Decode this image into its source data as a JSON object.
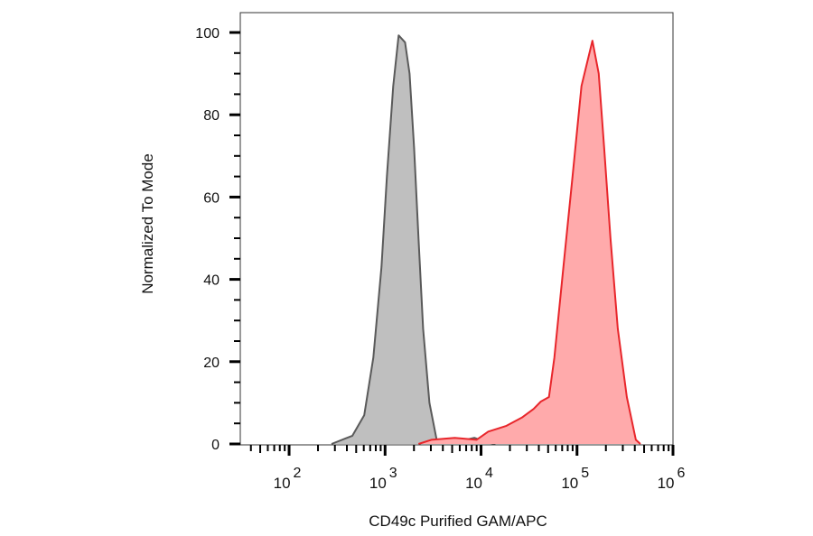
{
  "chart_data": {
    "type": "area",
    "title": "",
    "xlabel": "CD49c Purified GAM/APC",
    "ylabel": "Normalized To Mode",
    "xscale": "log",
    "xlim": [
      31,
      1000000
    ],
    "ylim": [
      0,
      104.8
    ],
    "x_tick_labels": [
      {
        "base": "10",
        "exp": "2",
        "value": 100
      },
      {
        "base": "10",
        "exp": "3",
        "value": 1000
      },
      {
        "base": "10",
        "exp": "4",
        "value": 10000
      },
      {
        "base": "10",
        "exp": "5",
        "value": 100000
      },
      {
        "base": "10",
        "exp": "6",
        "value": 1000000
      }
    ],
    "y_ticks": [
      0,
      20,
      40,
      60,
      80,
      100
    ],
    "grid": false,
    "legend": "none",
    "series": [
      {
        "color": "#5a5a5a",
        "fill": "#bfbfbf",
        "points": [
          [
            277,
            0
          ],
          [
            457,
            2
          ],
          [
            607,
            7
          ],
          [
            754,
            21
          ],
          [
            917,
            43
          ],
          [
            1044,
            65
          ],
          [
            1216,
            87
          ],
          [
            1386,
            99.3
          ],
          [
            1614,
            97.6
          ],
          [
            1799,
            90
          ],
          [
            2004,
            72
          ],
          [
            2233,
            50
          ],
          [
            2489,
            28
          ],
          [
            2897,
            10
          ],
          [
            3451,
            1
          ],
          [
            4287,
            0.3
          ],
          [
            6918,
            1
          ],
          [
            8511,
            1.5
          ],
          [
            11885,
            0.3
          ],
          [
            14125,
            0
          ]
        ]
      },
      {
        "color": "#e8262b",
        "fill": "#ffaaab",
        "points": [
          [
            2233,
            0
          ],
          [
            3027,
            1
          ],
          [
            5320,
            1.5
          ],
          [
            8975,
            1
          ],
          [
            11885,
            3
          ],
          [
            18360,
            4.4
          ],
          [
            26600,
            6.4
          ],
          [
            35260,
            8.5
          ],
          [
            41980,
            10.3
          ],
          [
            51050,
            11.4
          ],
          [
            58080,
            21
          ],
          [
            72130,
            43
          ],
          [
            89720,
            65
          ],
          [
            111300,
            87
          ],
          [
            144600,
            98
          ],
          [
            168300,
            90
          ],
          [
            191900,
            72
          ],
          [
            223300,
            50
          ],
          [
            265900,
            28
          ],
          [
            330400,
            11.4
          ],
          [
            410400,
            1
          ],
          [
            457000,
            0
          ]
        ]
      }
    ]
  }
}
